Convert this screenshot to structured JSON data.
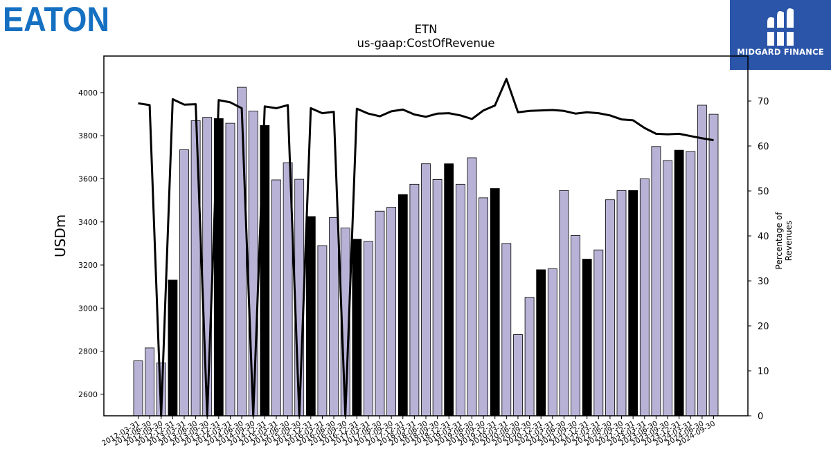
{
  "logos": {
    "eaton": "EATON",
    "midgard": "MIDGARD FINANCE"
  },
  "colors": {
    "bar_regular": "#b8b3d6",
    "bar_q4": "#000000",
    "line": "#000000",
    "eaton_blue": "#1570c2",
    "midgard_bg": "#2a55a8"
  },
  "chart_data": {
    "type": "bar",
    "title": "ETN",
    "subtitle": "us-gaap:CostOfRevenue",
    "ylabel": "USDm",
    "y2label": "Percentage of Revenues",
    "ylim": [
      2500,
      4170
    ],
    "y2lim": [
      0,
      80
    ],
    "yticks": [
      2600,
      2800,
      3000,
      3200,
      3400,
      3600,
      3800,
      4000
    ],
    "y2ticks": [
      0,
      10,
      20,
      30,
      40,
      50,
      60,
      70
    ],
    "categories": [
      "2012-03-31",
      "2012-06-30",
      "2012-09-30",
      "2012-12-31",
      "2013-03-31",
      "2013-06-30",
      "2013-09-30",
      "2013-12-31",
      "2014-03-31",
      "2014-06-30",
      "2014-09-30",
      "2014-12-31",
      "2015-03-31",
      "2015-06-30",
      "2015-09-30",
      "2015-12-31",
      "2016-03-31",
      "2016-06-30",
      "2016-09-30",
      "2016-12-31",
      "2017-03-31",
      "2017-06-30",
      "2017-09-30",
      "2017-12-31",
      "2018-03-31",
      "2018-06-30",
      "2018-09-30",
      "2018-12-31",
      "2019-03-31",
      "2019-06-30",
      "2019-09-30",
      "2019-12-31",
      "2020-03-31",
      "2020-06-30",
      "2020-09-30",
      "2020-12-31",
      "2021-03-31",
      "2021-06-30",
      "2021-09-30",
      "2021-12-31",
      "2022-03-31",
      "2022-06-30",
      "2022-09-30",
      "2022-12-31",
      "2023-03-31",
      "2023-06-30",
      "2023-09-30",
      "2023-12-31",
      "2024-03-31",
      "2024-06-30",
      "2024-09-30"
    ],
    "series": [
      {
        "type": "bar",
        "values": [
          2755,
          2815,
          2745,
          3130,
          3735,
          3870,
          3885,
          3880,
          3858,
          4025,
          3915,
          3848,
          3595,
          3675,
          3598,
          3425,
          3290,
          3420,
          3372,
          3320,
          3310,
          3450,
          3468,
          3527,
          3575,
          3670,
          3597,
          3670,
          3575,
          3698,
          3512,
          3555,
          3300,
          2877,
          3050,
          3178,
          3182,
          3546,
          3337,
          3227,
          3270,
          3503,
          3546,
          3546,
          3600,
          3750,
          3685,
          3733,
          3727,
          3942,
          3900
        ]
      },
      {
        "type": "line",
        "axis": "right",
        "values": [
          69.5,
          69.1,
          0,
          70.4,
          69.2,
          69.3,
          0,
          70.2,
          69.7,
          68.4,
          0,
          68.8,
          68.4,
          69.1,
          0,
          68.4,
          67.3,
          67.6,
          0,
          68.3,
          67.2,
          66.6,
          67.7,
          68.1,
          67.0,
          66.5,
          67.2,
          67.3,
          66.8,
          66.0,
          67.9,
          69.0,
          74.9,
          67.5,
          67.8,
          67.9,
          68.0,
          67.8,
          67.2,
          67.5,
          67.3,
          66.8,
          65.9,
          65.7,
          64.0,
          62.7,
          62.6,
          62.7,
          62.2,
          61.7,
          61.3
        ]
      }
    ],
    "highlight_rule": "Q4 (December) bars drawn in black"
  }
}
